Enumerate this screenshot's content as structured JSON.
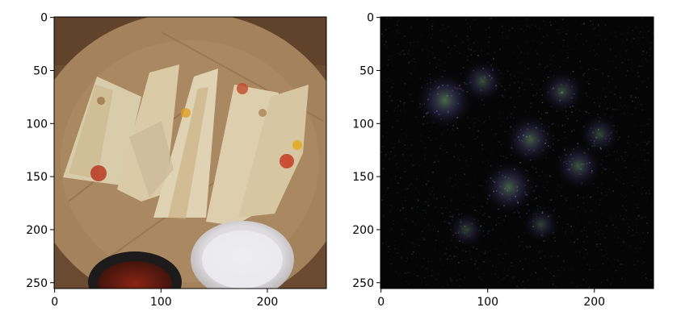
{
  "chart_data": [
    {
      "type": "image",
      "title": "",
      "xlabel": "",
      "ylabel": "",
      "xlim": [
        0,
        255
      ],
      "ylim": [
        255,
        0
      ],
      "xticks": [
        0,
        100,
        200
      ],
      "yticks": [
        0,
        50,
        100,
        150,
        200,
        250
      ],
      "image_description": "photo of quesadilla wedges on a wooden plate with a cup of salsa and a cup of sour cream",
      "colors": {
        "plate": "#9c7a55",
        "tortilla": "#d8c9a8",
        "salsa": "#5a1a12",
        "sour_cream": "#e8e6ea",
        "table": "#6a4a30"
      }
    },
    {
      "type": "heatmap",
      "title": "",
      "xlabel": "",
      "ylabel": "",
      "xlim": [
        0,
        255
      ],
      "ylim": [
        255,
        0
      ],
      "xticks": [
        0,
        100,
        200
      ],
      "yticks": [
        0,
        50,
        100,
        150,
        200,
        250
      ],
      "image_description": "mostly black saliency/noise map with faint multicolored speckles",
      "hotspots": [
        {
          "x": 60,
          "y": 78,
          "intensity": 0.9
        },
        {
          "x": 95,
          "y": 60,
          "intensity": 0.5
        },
        {
          "x": 140,
          "y": 115,
          "intensity": 0.7
        },
        {
          "x": 120,
          "y": 160,
          "intensity": 0.8
        },
        {
          "x": 170,
          "y": 70,
          "intensity": 0.5
        },
        {
          "x": 185,
          "y": 140,
          "intensity": 0.6
        },
        {
          "x": 80,
          "y": 200,
          "intensity": 0.3
        },
        {
          "x": 205,
          "y": 110,
          "intensity": 0.4
        },
        {
          "x": 150,
          "y": 195,
          "intensity": 0.3
        }
      ],
      "colors": {
        "background": "#050505"
      }
    }
  ]
}
